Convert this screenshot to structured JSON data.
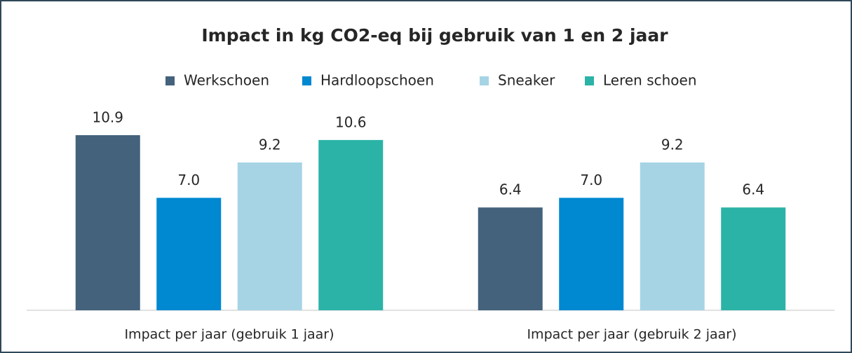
{
  "chart_data": {
    "type": "bar",
    "title": "Impact in kg CO2-eq bij gebruik van 1 en 2 jaar",
    "categories": [
      "Impact per jaar (gebruik 1 jaar)",
      "Impact per jaar (gebruik 2 jaar)"
    ],
    "series": [
      {
        "name": "Werkschoen",
        "color": "#44627c",
        "values": [
          10.9,
          6.4
        ]
      },
      {
        "name": "Hardloopschoen",
        "color": "#0088d1",
        "values": [
          7,
          7
        ],
        "value_labels": [
          "7.0",
          "7.0"
        ]
      },
      {
        "name": "Sneaker",
        "color": "#a6d4e5",
        "values": [
          9.2,
          9.2
        ]
      },
      {
        "name": "Leren schoen",
        "color": "#2bb3a7",
        "values": [
          10.6,
          6.4
        ]
      }
    ],
    "legend": "top"
  }
}
